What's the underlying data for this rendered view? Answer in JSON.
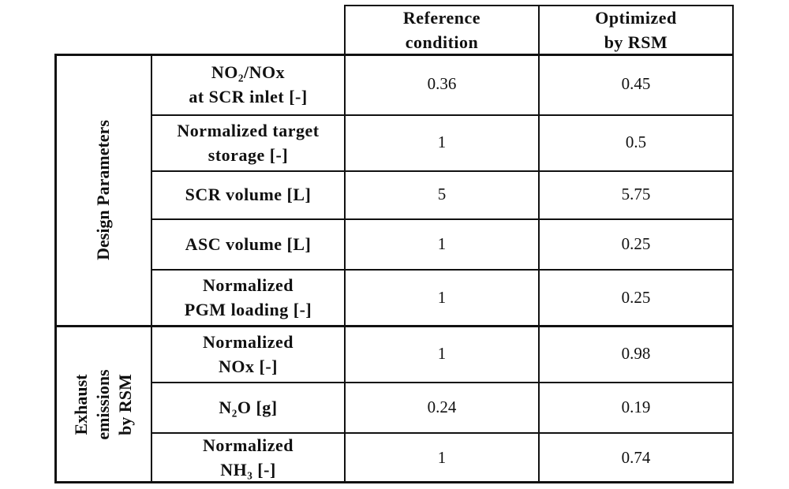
{
  "headers": {
    "reference": "Reference\ncondition",
    "optimized": "Optimized\nby RSM"
  },
  "groups": {
    "design": "Design Parameters",
    "exhaust": "Exhaust\nemissions\nby RSM"
  },
  "rows": [
    {
      "label": "NO₂/NOx\nat SCR inlet [-]",
      "reference": "0.36",
      "optimized": "0.45"
    },
    {
      "label": "Normalized target\nstorage [-]",
      "reference": "1",
      "optimized": "0.5"
    },
    {
      "label": "SCR volume [L]",
      "reference": "5",
      "optimized": "5.75"
    },
    {
      "label": "ASC volume [L]",
      "reference": "1",
      "optimized": "0.25"
    },
    {
      "label": "Normalized\nPGM loading [-]",
      "reference": "1",
      "optimized": "0.25"
    },
    {
      "label": "Normalized\nNOx [-]",
      "reference": "1",
      "optimized": "0.98"
    },
    {
      "label": "N₂O [g]",
      "reference": "0.24",
      "optimized": "0.19"
    },
    {
      "label": "Normalized\nNH₃ [-]",
      "reference": "1",
      "optimized": "0.74"
    }
  ]
}
